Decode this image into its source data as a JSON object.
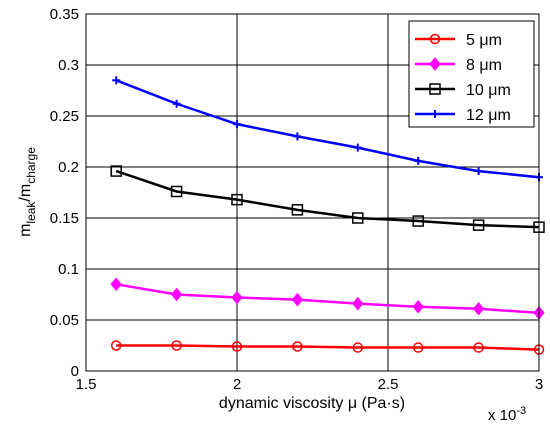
{
  "chart_data": {
    "type": "line",
    "xlabel": "dynamic viscosity μ (Pa·s)",
    "x_multiplier": "x 10",
    "x_multiplier_exp": "-3",
    "ylabel": {
      "base": "m",
      "num_sub": "leak",
      "sep": "/m",
      "den_sub": "charge"
    },
    "xlim": [
      1.5,
      3.0
    ],
    "ylim": [
      0,
      0.35
    ],
    "xticks": [
      1.5,
      2,
      2.5,
      3
    ],
    "xtick_labels": [
      "1.5",
      "2",
      "2.5",
      "3"
    ],
    "yticks": [
      0,
      0.05,
      0.1,
      0.15,
      0.2,
      0.25,
      0.3,
      0.35
    ],
    "ytick_labels": [
      "0",
      "0.05",
      "0.1",
      "0.15",
      "0.2",
      "0.25",
      "0.3",
      "0.35"
    ],
    "grid": true,
    "legend_position": "top-right",
    "x": [
      1.6,
      1.8,
      2.0,
      2.2,
      2.4,
      2.6,
      2.8,
      3.0
    ],
    "series": [
      {
        "name": "5 μm",
        "color": "#ff0000",
        "marker": "circle",
        "values": [
          0.025,
          0.025,
          0.024,
          0.024,
          0.023,
          0.023,
          0.023,
          0.021
        ]
      },
      {
        "name": "8 μm",
        "color": "#ff00ff",
        "marker": "diamond",
        "values": [
          0.085,
          0.075,
          0.072,
          0.07,
          0.066,
          0.063,
          0.061,
          0.057
        ]
      },
      {
        "name": "10 μm",
        "color": "#000000",
        "marker": "square",
        "values": [
          0.196,
          0.176,
          0.168,
          0.158,
          0.15,
          0.147,
          0.143,
          0.141
        ]
      },
      {
        "name": "12 μm",
        "color": "#0000ff",
        "marker": "plus",
        "values": [
          0.285,
          0.262,
          0.242,
          0.23,
          0.219,
          0.206,
          0.196,
          0.19
        ]
      }
    ]
  }
}
